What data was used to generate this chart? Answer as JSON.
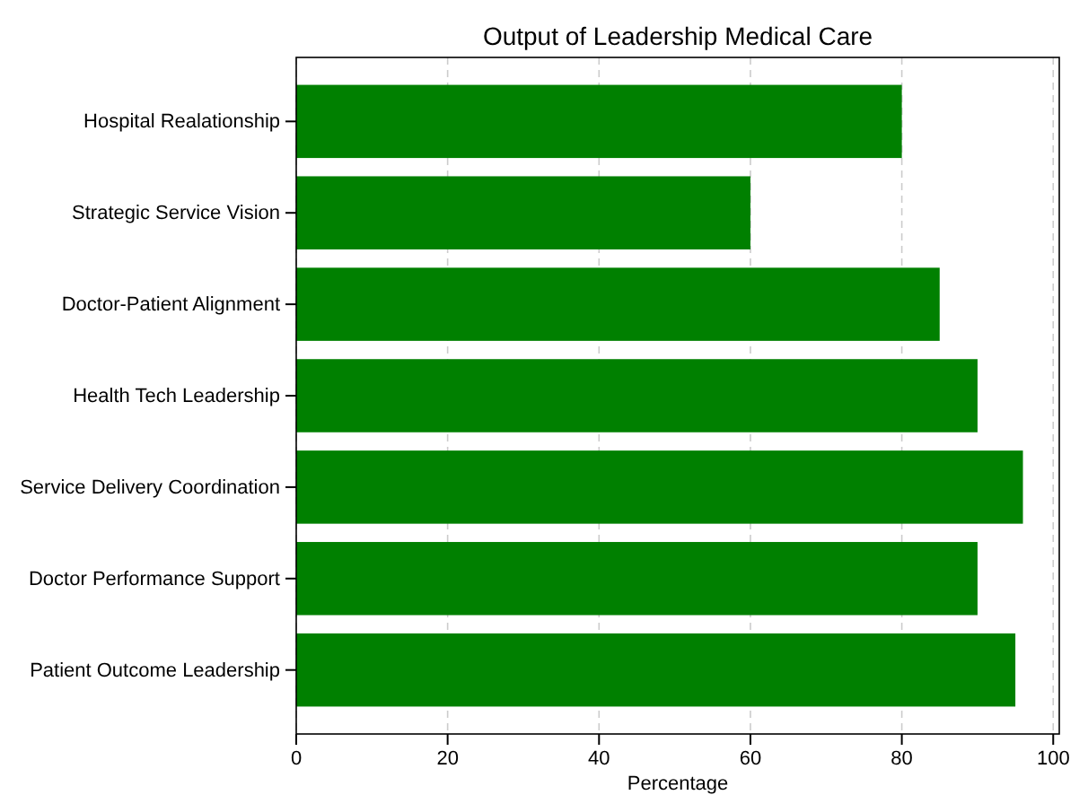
{
  "chart_data": {
    "type": "bar",
    "orientation": "horizontal",
    "title": "Output of Leadership Medical Care",
    "xlabel": "Percentage",
    "categories": [
      "Hospital Realationship",
      "Strategic Service Vision",
      "Doctor-Patient Alignment",
      "Health Tech Leadership",
      "Service Delivery Coordination",
      "Doctor Performance Support",
      "Patient Outcome Leadership"
    ],
    "values": [
      80,
      60,
      85,
      90,
      96,
      90,
      95
    ],
    "color": "#008000",
    "xlim": [
      0,
      100.8
    ],
    "xticks": [
      0,
      20,
      40,
      60,
      80,
      100
    ],
    "grid": "x"
  }
}
